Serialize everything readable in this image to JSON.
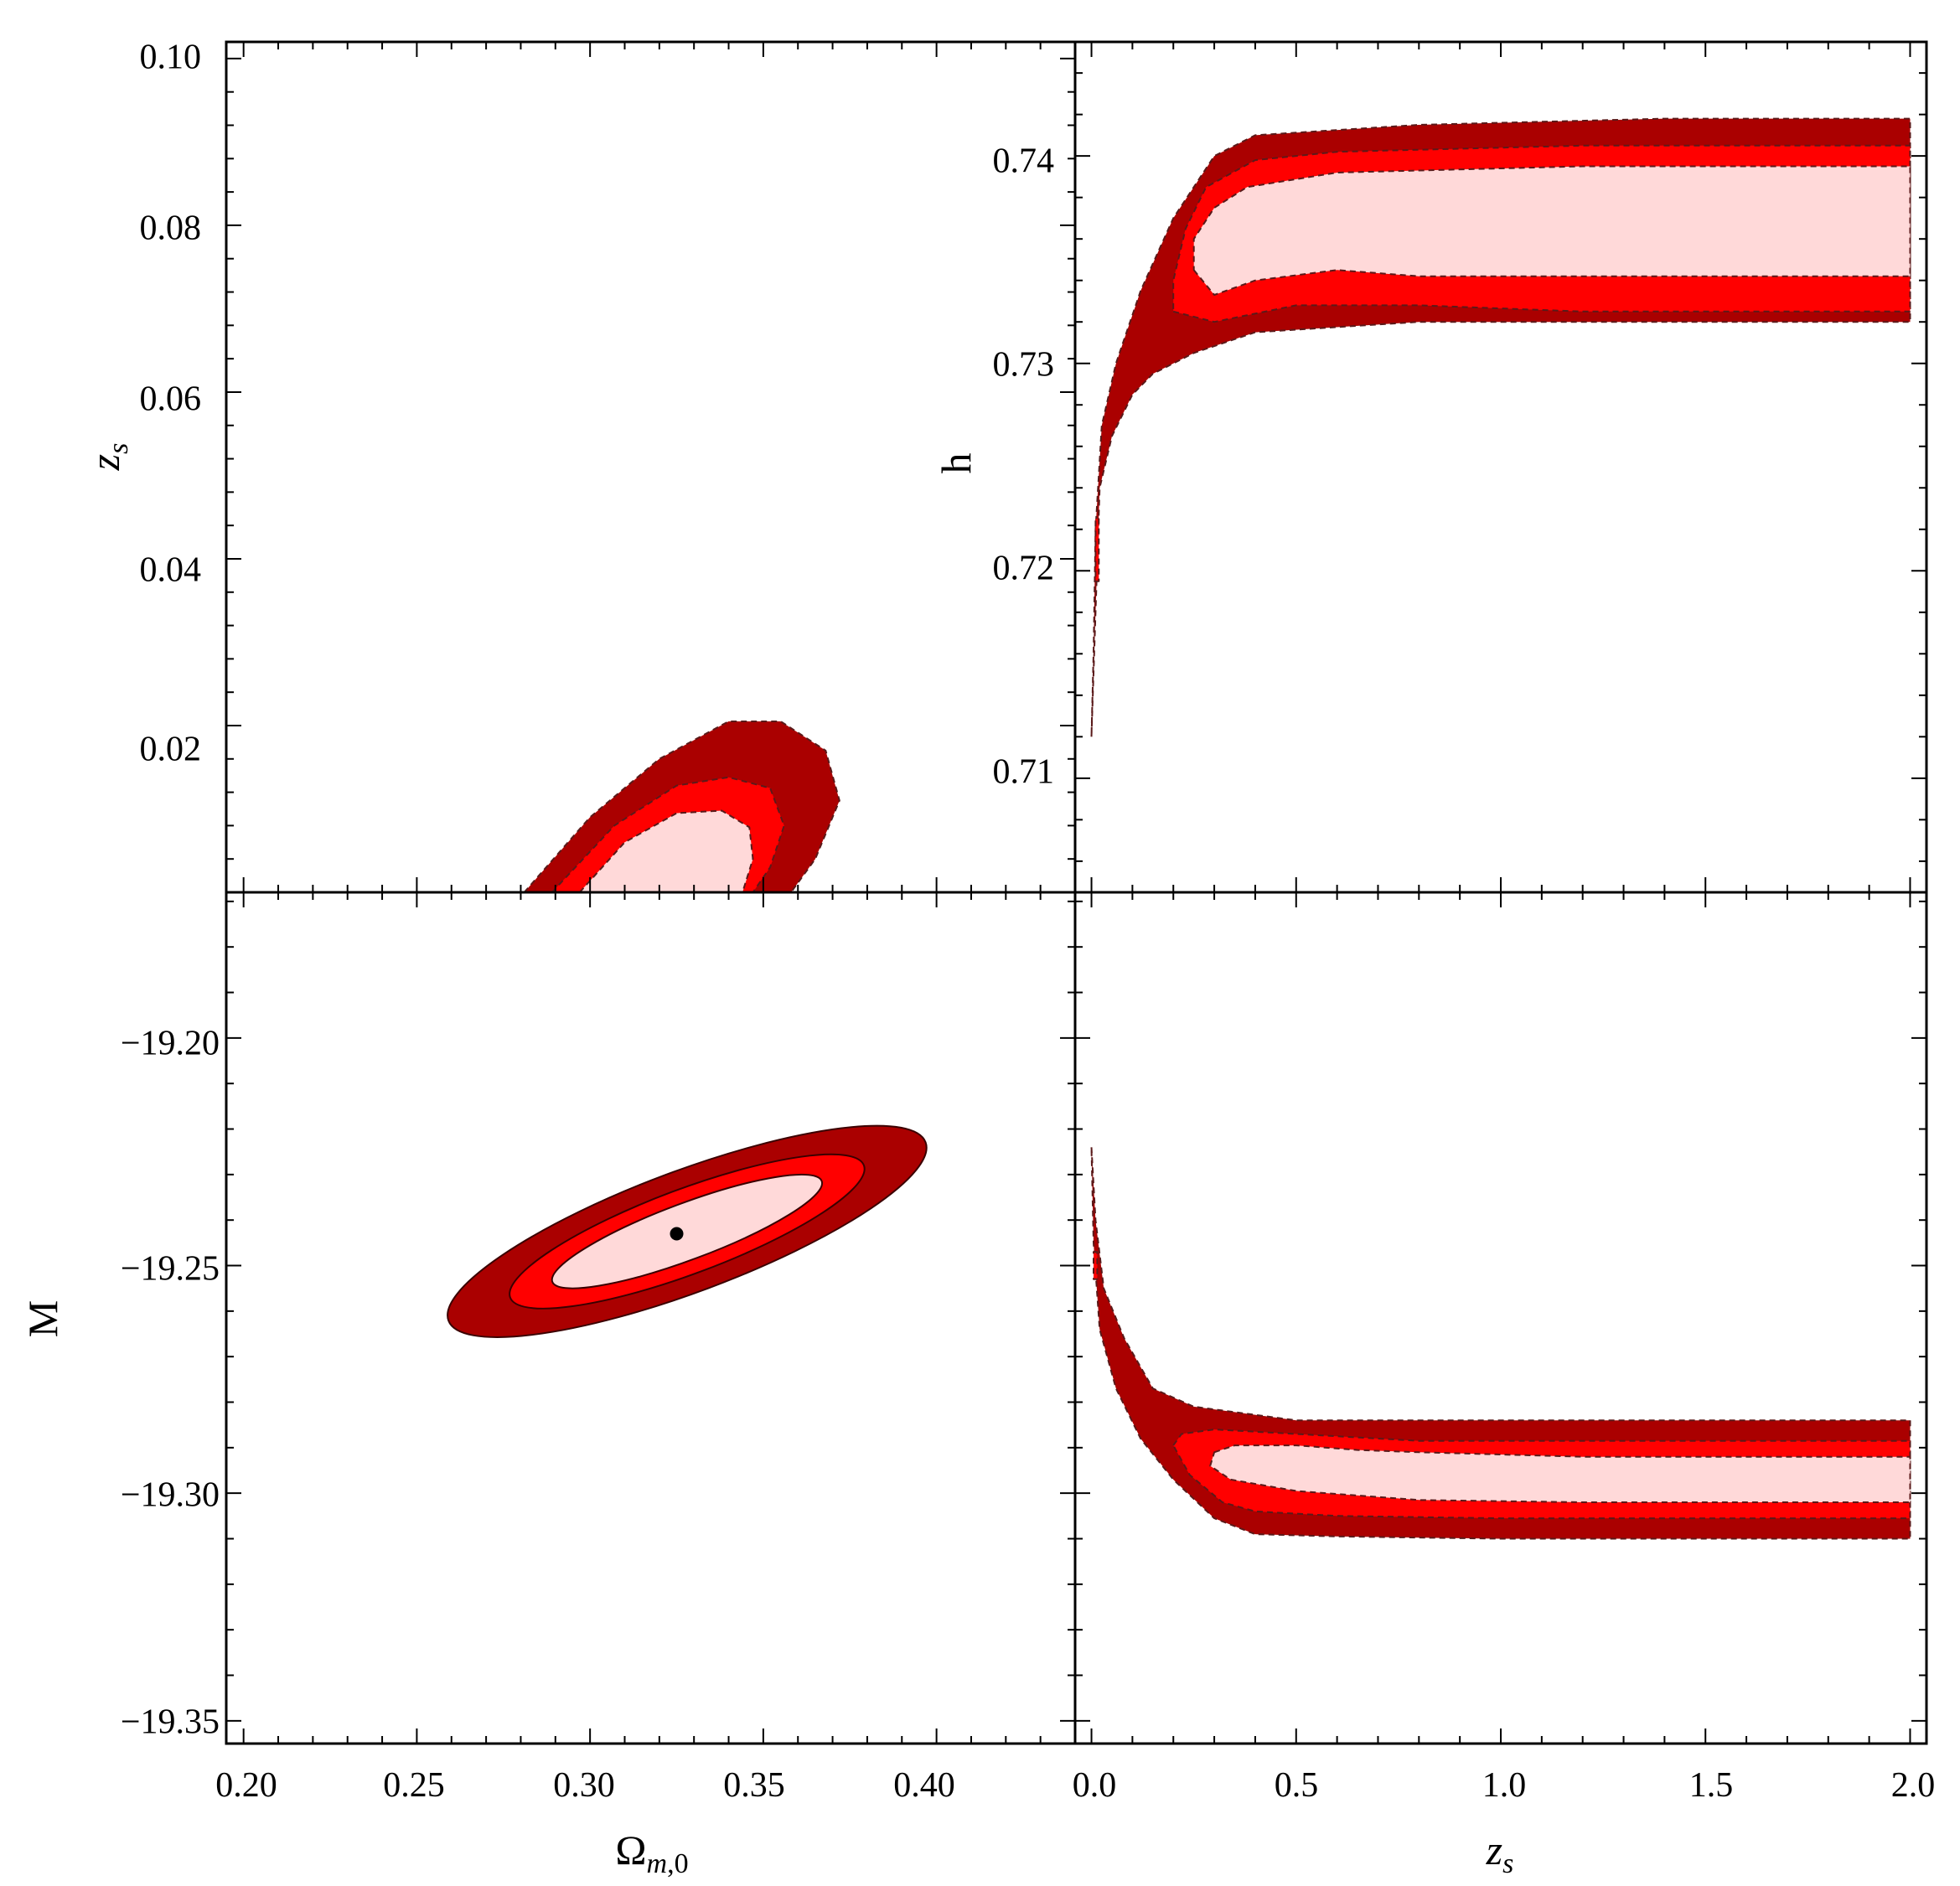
{
  "colors": {
    "sigma1": "#ffd9d9",
    "sigma2": "#ff0000",
    "sigma3": "#aa0000",
    "best_fit": "#000000",
    "frame": "#000000"
  },
  "chart_data": [
    {
      "id": "omega-zs",
      "type": "contour",
      "xlabel": "Ωm,0",
      "ylabel": "z_s",
      "xlim": [
        0.195,
        0.44
      ],
      "ylim": [
        0.0,
        0.102
      ],
      "xticks": [],
      "yticks": [
        "0.02",
        "0.04",
        "0.06",
        "0.08",
        "0.10"
      ],
      "contours": [
        {
          "level": "3sigma",
          "points": [
            [
              0.281,
              0.0
            ],
            [
              0.3,
              0.009
            ],
            [
              0.32,
              0.016
            ],
            [
              0.34,
              0.0205
            ],
            [
              0.355,
              0.0205
            ],
            [
              0.368,
              0.017
            ],
            [
              0.372,
              0.011
            ],
            [
              0.365,
              0.004
            ],
            [
              0.358,
              0.0
            ]
          ]
        },
        {
          "level": "2sigma",
          "points": [
            [
              0.289,
              0.0
            ],
            [
              0.307,
              0.008
            ],
            [
              0.325,
              0.0128
            ],
            [
              0.34,
              0.0138
            ],
            [
              0.352,
              0.0125
            ],
            [
              0.356,
              0.008
            ],
            [
              0.352,
              0.003
            ],
            [
              0.347,
              0.0
            ]
          ]
        },
        {
          "level": "1sigma",
          "points": [
            [
              0.297,
              0.0
            ],
            [
              0.31,
              0.006
            ],
            [
              0.325,
              0.0095
            ],
            [
              0.338,
              0.0098
            ],
            [
              0.346,
              0.0078
            ],
            [
              0.347,
              0.004
            ],
            [
              0.344,
              0.0
            ]
          ]
        }
      ]
    },
    {
      "id": "zs-h",
      "type": "contour",
      "xlabel": "",
      "ylabel": "h",
      "xlim": [
        -0.04,
        2.04
      ],
      "ylim": [
        0.7045,
        0.7455
      ],
      "xticks": [],
      "yticks": [
        "0.71",
        "0.72",
        "0.73",
        "0.74"
      ],
      "contours": [
        {
          "level": "3sigma",
          "points": [
            [
              0.0,
              0.712
            ],
            [
              0.01,
              0.718
            ],
            [
              0.02,
              0.724
            ],
            [
              0.05,
              0.7265
            ],
            [
              0.1,
              0.7285
            ],
            [
              0.15,
              0.7295
            ],
            [
              0.25,
              0.7305
            ],
            [
              0.4,
              0.7315
            ],
            [
              0.8,
              0.732
            ],
            [
              1.4,
              0.732
            ],
            [
              2.0,
              0.732
            ],
            [
              2.0,
              0.7418
            ],
            [
              1.4,
              0.7418
            ],
            [
              0.8,
              0.7415
            ],
            [
              0.4,
              0.741
            ],
            [
              0.3,
              0.74
            ],
            [
              0.2,
              0.737
            ],
            [
              0.12,
              0.7335
            ],
            [
              0.06,
              0.73
            ],
            [
              0.025,
              0.727
            ],
            [
              0.01,
              0.722
            ],
            [
              0.005,
              0.716
            ]
          ]
        },
        {
          "level": "2sigma",
          "points": [
            [
              0.01,
              0.7195
            ],
            [
              0.018,
              0.7195
            ],
            [
              0.018,
              0.7225
            ],
            [
              0.01,
              0.7225
            ]
          ]
        },
        {
          "level": "2sigma",
          "points": [
            [
              0.2,
              0.7325
            ],
            [
              0.3,
              0.732
            ],
            [
              0.5,
              0.7328
            ],
            [
              0.8,
              0.7328
            ],
            [
              1.2,
              0.7325
            ],
            [
              2.0,
              0.7325
            ],
            [
              2.0,
              0.7405
            ],
            [
              1.2,
              0.7405
            ],
            [
              0.6,
              0.7402
            ],
            [
              0.4,
              0.7398
            ],
            [
              0.28,
              0.7385
            ],
            [
              0.23,
              0.7365
            ],
            [
              0.2,
              0.734
            ]
          ]
        },
        {
          "level": "1sigma",
          "points": [
            [
              0.25,
              0.7345
            ],
            [
              0.3,
              0.7333
            ],
            [
              0.4,
              0.734
            ],
            [
              0.6,
              0.7345
            ],
            [
              0.8,
              0.7342
            ],
            [
              1.2,
              0.7342
            ],
            [
              2.0,
              0.7342
            ],
            [
              2.0,
              0.7395
            ],
            [
              1.2,
              0.7395
            ],
            [
              0.6,
              0.7392
            ],
            [
              0.38,
              0.7385
            ],
            [
              0.3,
              0.7375
            ],
            [
              0.25,
              0.736
            ]
          ]
        }
      ]
    },
    {
      "id": "omega-M",
      "type": "contour",
      "xlabel": "Ωm,0",
      "ylabel": "M",
      "xlim": [
        0.195,
        0.44
      ],
      "ylim": [
        -19.355,
        -19.168
      ],
      "xticks": [
        "0.20",
        "0.25",
        "0.30",
        "0.35",
        "0.40"
      ],
      "yticks": [
        "−19.35",
        "−19.30",
        "−19.25",
        "−19.20"
      ],
      "best_fit": {
        "x": 0.325,
        "y": -19.243
      },
      "ellipses": [
        {
          "level": "3sigma",
          "cx": 0.328,
          "cy": -19.2425,
          "rx": 0.0735,
          "ry": -0.0133,
          "rotate_deg": -20.5
        },
        {
          "level": "2sigma",
          "cx": 0.328,
          "cy": -19.2425,
          "rx": 0.0545,
          "ry": -0.0093,
          "rotate_deg": -20.5
        },
        {
          "level": "1sigma",
          "cx": 0.328,
          "cy": -19.2425,
          "rx": 0.0415,
          "ry": -0.0062,
          "rotate_deg": -20.5
        }
      ]
    },
    {
      "id": "zs-M",
      "type": "contour",
      "xlabel": "z_s",
      "ylabel": "",
      "xlim": [
        -0.04,
        2.04
      ],
      "ylim": [
        -19.355,
        -19.168
      ],
      "xticks": [
        "0.0",
        "0.5",
        "1.0",
        "1.5",
        "2.0"
      ],
      "yticks": [],
      "contours": [
        {
          "level": "3sigma",
          "points": [
            [
              0.0,
              -19.224
            ],
            [
              0.01,
              -19.24
            ],
            [
              0.03,
              -19.255
            ],
            [
              0.08,
              -19.266
            ],
            [
              0.15,
              -19.277
            ],
            [
              0.25,
              -19.281
            ],
            [
              0.5,
              -19.284
            ],
            [
              1.0,
              -19.284
            ],
            [
              2.0,
              -19.284
            ],
            [
              2.0,
              -19.31
            ],
            [
              1.0,
              -19.31
            ],
            [
              0.6,
              -19.3095
            ],
            [
              0.4,
              -19.309
            ],
            [
              0.3,
              -19.3055
            ],
            [
              0.2,
              -19.297
            ],
            [
              0.12,
              -19.288
            ],
            [
              0.06,
              -19.277
            ],
            [
              0.02,
              -19.264
            ],
            [
              0.005,
              -19.245
            ]
          ]
        },
        {
          "level": "2sigma",
          "points": [
            [
              0.005,
              -19.247
            ],
            [
              0.014,
              -19.247
            ],
            [
              0.014,
              -19.253
            ],
            [
              0.005,
              -19.253
            ]
          ]
        },
        {
          "level": "2sigma",
          "points": [
            [
              0.2,
              -19.2895
            ],
            [
              0.22,
              -19.287
            ],
            [
              0.3,
              -19.286
            ],
            [
              0.4,
              -19.2865
            ],
            [
              0.8,
              -19.2885
            ],
            [
              2.0,
              -19.2885
            ],
            [
              2.0,
              -19.3055
            ],
            [
              1.0,
              -19.3055
            ],
            [
              0.6,
              -19.305
            ],
            [
              0.4,
              -19.304
            ],
            [
              0.32,
              -19.302
            ],
            [
              0.24,
              -19.296
            ]
          ]
        },
        {
          "level": "1sigma",
          "points": [
            [
              0.3,
              -19.291
            ],
            [
              0.35,
              -19.2895
            ],
            [
              0.5,
              -19.2895
            ],
            [
              0.65,
              -19.2905
            ],
            [
              0.8,
              -19.291
            ],
            [
              1.2,
              -19.292
            ],
            [
              2.0,
              -19.292
            ],
            [
              2.0,
              -19.302
            ],
            [
              1.2,
              -19.302
            ],
            [
              0.8,
              -19.3015
            ],
            [
              0.5,
              -19.2995
            ],
            [
              0.34,
              -19.297
            ],
            [
              0.29,
              -19.294
            ]
          ]
        }
      ]
    }
  ]
}
